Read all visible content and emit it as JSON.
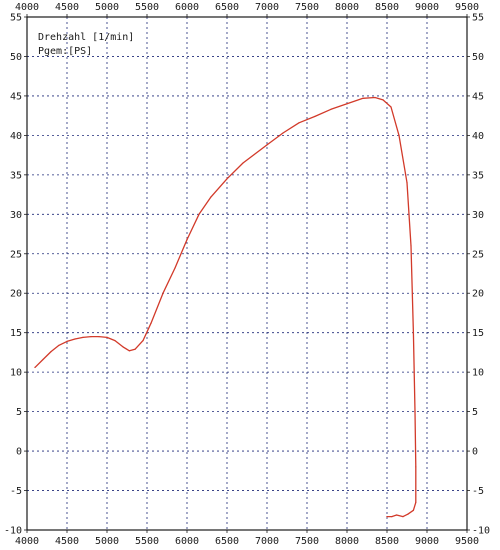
{
  "chart_data": {
    "type": "line",
    "title": "",
    "xlabel": "",
    "ylabel": "",
    "xlim": [
      4000,
      9500
    ],
    "ylim": [
      -10,
      55
    ],
    "x_ticks": [
      4000,
      4500,
      5000,
      5500,
      6000,
      6500,
      7000,
      7500,
      8000,
      8500,
      9000,
      9500
    ],
    "y_ticks": [
      55,
      50,
      45,
      40,
      35,
      30,
      25,
      20,
      15,
      10,
      5,
      0,
      -5,
      -10
    ],
    "grid": true,
    "legend": {
      "placement": "top-left",
      "entries": [
        "Drehzahl [1/min]",
        "Pgem:[PS]"
      ]
    },
    "colors": {
      "series": "#d23a2a",
      "grid": "#1e2a78",
      "frame": "#1a1a1a"
    },
    "series": [
      {
        "name": "Pgem:[PS]",
        "points": [
          [
            4100,
            10.6
          ],
          [
            4200,
            11.6
          ],
          [
            4300,
            12.6
          ],
          [
            4400,
            13.4
          ],
          [
            4500,
            13.9
          ],
          [
            4600,
            14.2
          ],
          [
            4700,
            14.4
          ],
          [
            4800,
            14.5
          ],
          [
            4900,
            14.5
          ],
          [
            5000,
            14.4
          ],
          [
            5100,
            14.0
          ],
          [
            5200,
            13.2
          ],
          [
            5280,
            12.7
          ],
          [
            5350,
            12.9
          ],
          [
            5450,
            14.0
          ],
          [
            5550,
            16.2
          ],
          [
            5700,
            20.0
          ],
          [
            5850,
            23.2
          ],
          [
            6000,
            26.8
          ],
          [
            6150,
            30.0
          ],
          [
            6300,
            32.2
          ],
          [
            6500,
            34.5
          ],
          [
            6700,
            36.5
          ],
          [
            7000,
            38.8
          ],
          [
            7200,
            40.3
          ],
          [
            7400,
            41.6
          ],
          [
            7600,
            42.4
          ],
          [
            7800,
            43.3
          ],
          [
            8000,
            44.0
          ],
          [
            8200,
            44.7
          ],
          [
            8350,
            44.8
          ],
          [
            8450,
            44.5
          ],
          [
            8550,
            43.6
          ],
          [
            8650,
            40.0
          ],
          [
            8750,
            34.0
          ],
          [
            8800,
            26.0
          ],
          [
            8830,
            15.0
          ],
          [
            8850,
            5.0
          ],
          [
            8860,
            -2.0
          ],
          [
            8860,
            -6.5
          ],
          [
            8830,
            -7.5
          ],
          [
            8760,
            -8.0
          ],
          [
            8700,
            -8.3
          ],
          [
            8620,
            -8.1
          ],
          [
            8560,
            -8.3
          ],
          [
            8500,
            -8.3
          ]
        ]
      }
    ]
  }
}
